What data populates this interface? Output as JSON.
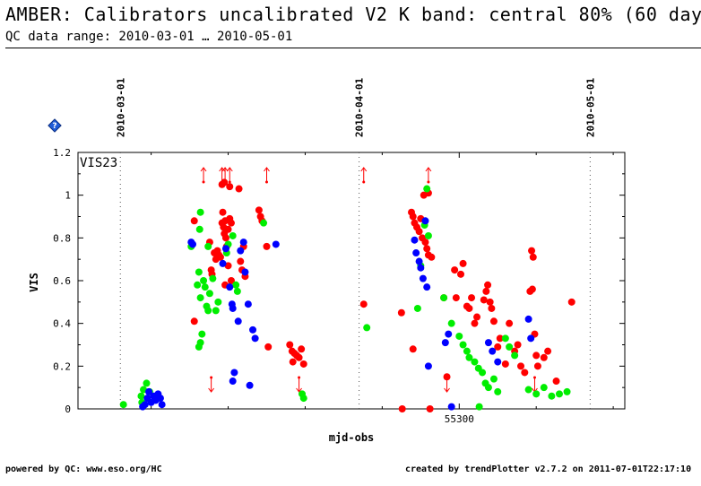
{
  "header": {
    "title": "AMBER: Calibrators uncalibrated V2 K band: central 80% (60 days",
    "subtitle": "QC data range: 2010-03-01 … 2010-05-01"
  },
  "footer": {
    "left": "powered by QC: www.eso.org/HC",
    "right": "created by trendPlotter v2.7.2 on 2011-07-01T22:17:10"
  },
  "colors": {
    "red": "#ff0000",
    "green": "#00ee00",
    "blue": "#0000ff",
    "axis": "#000000"
  },
  "icons": {
    "help": "help-diamond-icon"
  },
  "chart_data": {
    "type": "scatter",
    "title": "VIS23",
    "xlabel": "mjd-obs",
    "ylabel": "VIS",
    "xlim": [
      55250.5,
      55321.5
    ],
    "ylim": [
      0,
      1.2
    ],
    "yticks": [
      0,
      0.2,
      0.4,
      0.6,
      0.8,
      1,
      1.2
    ],
    "ytick_labels": [
      "0",
      "0.2",
      "0.4",
      "0.6",
      "0.8",
      "1",
      "1.2"
    ],
    "xticks": [
      55300
    ],
    "xtick_labels": [
      "55300"
    ],
    "date_markers": [
      {
        "label": "2010-03-01",
        "x": 55256
      },
      {
        "label": "2010-04-01",
        "x": 55287
      },
      {
        "label": "2010-05-01",
        "x": 55317
      }
    ],
    "grid": false,
    "series": [
      {
        "color": "red",
        "points": [
          [
            55265.6,
            0.88
          ],
          [
            55265.6,
            0.41
          ],
          [
            55267.6,
            0.78
          ],
          [
            55267.8,
            0.65
          ],
          [
            55267.9,
            0.63
          ],
          [
            55268.2,
            0.73
          ],
          [
            55268.4,
            0.7
          ],
          [
            55268.6,
            0.74
          ],
          [
            55268.8,
            0.72
          ],
          [
            55269.0,
            0.71
          ],
          [
            55269.2,
            0.87
          ],
          [
            55269.3,
            0.92
          ],
          [
            55269.4,
            0.85
          ],
          [
            55269.5,
            0.82
          ],
          [
            55269.6,
            0.88
          ],
          [
            55269.7,
            0.8
          ],
          [
            55269.8,
            0.76
          ],
          [
            55270.0,
            0.84
          ],
          [
            55270.2,
            0.89
          ],
          [
            55270.4,
            0.87
          ],
          [
            55269.2,
            1.05
          ],
          [
            55269.5,
            1.06
          ],
          [
            55270.2,
            1.04
          ],
          [
            55269.6,
            0.58
          ],
          [
            55270.0,
            0.67
          ],
          [
            55270.4,
            0.6
          ],
          [
            55271.4,
            1.03
          ],
          [
            55271.6,
            0.69
          ],
          [
            55271.8,
            0.65
          ],
          [
            55272.0,
            0.76
          ],
          [
            55272.2,
            0.62
          ],
          [
            55274.0,
            0.93
          ],
          [
            55274.2,
            0.9
          ],
          [
            55274.4,
            0.88
          ],
          [
            55275.0,
            0.76
          ],
          [
            55275.2,
            0.29
          ],
          [
            55278.0,
            0.3
          ],
          [
            55278.3,
            0.27
          ],
          [
            55278.6,
            0.26
          ],
          [
            55278.9,
            0.25
          ],
          [
            55279.2,
            0.24
          ],
          [
            55279.5,
            0.28
          ],
          [
            55279.8,
            0.21
          ],
          [
            55278.4,
            0.22
          ],
          [
            55287.6,
            0.49
          ],
          [
            55292.5,
            0.45
          ],
          [
            55294.0,
            0.28
          ],
          [
            55293.8,
            0.92
          ],
          [
            55294.0,
            0.9
          ],
          [
            55294.2,
            0.87
          ],
          [
            55294.5,
            0.85
          ],
          [
            55294.8,
            0.83
          ],
          [
            55295.0,
            0.89
          ],
          [
            55295.2,
            0.8
          ],
          [
            55295.6,
            0.78
          ],
          [
            55295.8,
            0.75
          ],
          [
            55296.0,
            0.72
          ],
          [
            55295.4,
            1.0
          ],
          [
            55296.0,
            1.01
          ],
          [
            55296.4,
            0.71
          ],
          [
            55298.0,
            0.52
          ],
          [
            55298.4,
            0.15
          ],
          [
            55299.4,
            0.65
          ],
          [
            55299.6,
            0.52
          ],
          [
            55300.2,
            0.63
          ],
          [
            55300.5,
            0.68
          ],
          [
            55301.0,
            0.48
          ],
          [
            55301.3,
            0.47
          ],
          [
            55301.6,
            0.52
          ],
          [
            55302.0,
            0.4
          ],
          [
            55302.3,
            0.43
          ],
          [
            55303.2,
            0.51
          ],
          [
            55303.5,
            0.55
          ],
          [
            55303.7,
            0.58
          ],
          [
            55304.0,
            0.5
          ],
          [
            55304.2,
            0.47
          ],
          [
            55304.5,
            0.41
          ],
          [
            55305.0,
            0.29
          ],
          [
            55305.3,
            0.33
          ],
          [
            55306.0,
            0.21
          ],
          [
            55306.5,
            0.4
          ],
          [
            55307.2,
            0.27
          ],
          [
            55307.6,
            0.3
          ],
          [
            55308.0,
            0.2
          ],
          [
            55308.5,
            0.17
          ],
          [
            55309.2,
            0.55
          ],
          [
            55309.4,
            0.74
          ],
          [
            55309.6,
            0.71
          ],
          [
            55309.5,
            0.56
          ],
          [
            55309.8,
            0.35
          ],
          [
            55310.0,
            0.25
          ],
          [
            55310.2,
            0.2
          ],
          [
            55311.0,
            0.24
          ],
          [
            55311.5,
            0.27
          ],
          [
            55312.6,
            0.13
          ],
          [
            55314.6,
            0.5
          ],
          [
            55292.6,
            0.0
          ],
          [
            55296.2,
            0.0
          ]
        ]
      },
      {
        "color": "green",
        "points": [
          [
            55256.4,
            0.02
          ],
          [
            55258.7,
            0.06
          ],
          [
            55258.8,
            0.03
          ],
          [
            55259.0,
            0.09
          ],
          [
            55259.4,
            0.12
          ],
          [
            55259.8,
            0.08
          ],
          [
            55265.2,
            0.76
          ],
          [
            55266.4,
            0.92
          ],
          [
            55266.3,
            0.84
          ],
          [
            55266.2,
            0.64
          ],
          [
            55266.0,
            0.58
          ],
          [
            55266.4,
            0.52
          ],
          [
            55266.8,
            0.6
          ],
          [
            55267.0,
            0.57
          ],
          [
            55267.2,
            0.48
          ],
          [
            55267.4,
            0.46
          ],
          [
            55267.6,
            0.54
          ],
          [
            55266.6,
            0.35
          ],
          [
            55266.4,
            0.31
          ],
          [
            55266.2,
            0.29
          ],
          [
            55267.4,
            0.76
          ],
          [
            55268.0,
            0.61
          ],
          [
            55268.4,
            0.46
          ],
          [
            55268.7,
            0.5
          ],
          [
            55269.8,
            0.73
          ],
          [
            55270.0,
            0.77
          ],
          [
            55270.6,
            0.81
          ],
          [
            55271.0,
            0.58
          ],
          [
            55271.2,
            0.55
          ],
          [
            55274.6,
            0.87
          ],
          [
            55279.6,
            0.07
          ],
          [
            55279.8,
            0.05
          ],
          [
            55288.0,
            0.38
          ],
          [
            55294.6,
            0.47
          ],
          [
            55295.0,
            0.67
          ],
          [
            55295.5,
            0.86
          ],
          [
            55295.8,
            1.03
          ],
          [
            55296.0,
            0.81
          ],
          [
            55298.0,
            0.52
          ],
          [
            55299.0,
            0.4
          ],
          [
            55300.0,
            0.34
          ],
          [
            55300.5,
            0.3
          ],
          [
            55301.0,
            0.27
          ],
          [
            55301.3,
            0.24
          ],
          [
            55302.0,
            0.22
          ],
          [
            55302.5,
            0.19
          ],
          [
            55303.0,
            0.17
          ],
          [
            55303.4,
            0.12
          ],
          [
            55303.8,
            0.1
          ],
          [
            55304.5,
            0.14
          ],
          [
            55305.0,
            0.08
          ],
          [
            55302.6,
            0.01
          ],
          [
            55306.0,
            0.33
          ],
          [
            55306.5,
            0.29
          ],
          [
            55307.2,
            0.25
          ],
          [
            55309.0,
            0.09
          ],
          [
            55310.0,
            0.07
          ],
          [
            55311.0,
            0.1
          ],
          [
            55312.0,
            0.06
          ],
          [
            55313.0,
            0.07
          ],
          [
            55314.0,
            0.08
          ]
        ]
      },
      {
        "color": "blue",
        "points": [
          [
            55258.9,
            0.01
          ],
          [
            55259.2,
            0.02
          ],
          [
            55259.5,
            0.05
          ],
          [
            55259.7,
            0.08
          ],
          [
            55260.0,
            0.03
          ],
          [
            55260.3,
            0.06
          ],
          [
            55260.6,
            0.04
          ],
          [
            55260.9,
            0.07
          ],
          [
            55261.2,
            0.05
          ],
          [
            55261.4,
            0.02
          ],
          [
            55265.2,
            0.78
          ],
          [
            55265.4,
            0.77
          ],
          [
            55269.3,
            0.68
          ],
          [
            55269.7,
            0.75
          ],
          [
            55270.2,
            0.57
          ],
          [
            55270.5,
            0.49
          ],
          [
            55270.6,
            0.47
          ],
          [
            55270.8,
            0.17
          ],
          [
            55270.6,
            0.13
          ],
          [
            55271.3,
            0.41
          ],
          [
            55271.6,
            0.74
          ],
          [
            55272.0,
            0.78
          ],
          [
            55272.2,
            0.64
          ],
          [
            55273.2,
            0.37
          ],
          [
            55273.5,
            0.33
          ],
          [
            55276.2,
            0.77
          ],
          [
            55272.6,
            0.49
          ],
          [
            55272.8,
            0.11
          ],
          [
            55294.2,
            0.79
          ],
          [
            55294.4,
            0.73
          ],
          [
            55294.8,
            0.69
          ],
          [
            55295.0,
            0.66
          ],
          [
            55295.3,
            0.61
          ],
          [
            55295.6,
            0.88
          ],
          [
            55295.8,
            0.57
          ],
          [
            55296.0,
            0.2
          ],
          [
            55298.2,
            0.31
          ],
          [
            55298.6,
            0.35
          ],
          [
            55299.0,
            0.01
          ],
          [
            55303.8,
            0.31
          ],
          [
            55304.3,
            0.27
          ],
          [
            55309.0,
            0.42
          ],
          [
            55309.3,
            0.33
          ],
          [
            55305.0,
            0.22
          ]
        ]
      }
    ],
    "up_arrows": [
      {
        "x": 55266.8,
        "color": "red"
      },
      {
        "x": 55269.2,
        "color": "red"
      },
      {
        "x": 55269.6,
        "color": "red"
      },
      {
        "x": 55270.2,
        "color": "red"
      },
      {
        "x": 55275.0,
        "color": "red"
      },
      {
        "x": 55287.6,
        "color": "red"
      },
      {
        "x": 55296.0,
        "color": "red"
      }
    ],
    "down_arrows": [
      {
        "x": 55267.8,
        "color": "red"
      },
      {
        "x": 55279.2,
        "color": "red"
      },
      {
        "x": 55298.4,
        "color": "red"
      },
      {
        "x": 55309.8,
        "color": "red"
      }
    ]
  }
}
